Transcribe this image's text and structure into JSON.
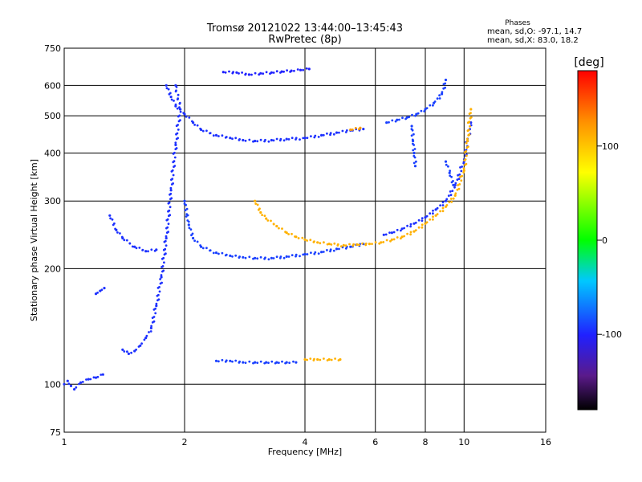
{
  "chart_data": {
    "type": "scatter",
    "title": "Tromsø 20121022 13:44:00–13:45:43",
    "subtitle": "RwPretec (8p)",
    "xlabel": "Frequency [MHz]",
    "ylabel": "Stationary phase Virtual Height [km]",
    "x_scale": "log",
    "y_scale": "log",
    "xlim": [
      1,
      16
    ],
    "ylim": [
      75,
      750
    ],
    "x_ticks": [
      1,
      2,
      4,
      6,
      8,
      10,
      16
    ],
    "y_ticks": [
      75,
      100,
      200,
      300,
      400,
      500,
      600,
      750
    ],
    "grid": true,
    "stats": {
      "heading": "Phases",
      "line_o": "mean, sd,O: -97.1, 14.7",
      "line_x": "mean, sd,X:  83.0, 18.2"
    },
    "colorbar": {
      "label": "[deg]",
      "range": [
        -180,
        180
      ],
      "ticks": [
        100,
        0,
        -100
      ]
    },
    "series": [
      {
        "phase": -95,
        "points": [
          [
            1.0,
            100
          ],
          [
            1.02,
            102
          ],
          [
            1.04,
            99
          ],
          [
            1.06,
            97
          ],
          [
            1.1,
            101
          ],
          [
            1.15,
            103
          ],
          [
            1.2,
            104
          ],
          [
            1.25,
            106
          ]
        ]
      },
      {
        "phase": -95,
        "points": [
          [
            1.2,
            172
          ],
          [
            1.23,
            175
          ],
          [
            1.26,
            178
          ]
        ]
      },
      {
        "phase": -95,
        "points": [
          [
            1.4,
            123
          ],
          [
            1.45,
            120
          ],
          [
            1.5,
            122
          ],
          [
            1.55,
            126
          ],
          [
            1.6,
            132
          ],
          [
            1.65,
            140
          ],
          [
            1.7,
            160
          ],
          [
            1.75,
            190
          ],
          [
            1.8,
            240
          ],
          [
            1.85,
            320
          ],
          [
            1.9,
            420
          ],
          [
            1.95,
            520
          ],
          [
            1.9,
            600
          ]
        ]
      },
      {
        "phase": -95,
        "points": [
          [
            1.3,
            275
          ],
          [
            1.35,
            252
          ],
          [
            1.4,
            240
          ],
          [
            1.5,
            228
          ],
          [
            1.6,
            222
          ],
          [
            1.7,
            224
          ]
        ]
      },
      {
        "phase": -95,
        "points": [
          [
            1.8,
            600
          ],
          [
            1.85,
            560
          ],
          [
            1.9,
            530
          ],
          [
            2.0,
            505
          ],
          [
            2.1,
            480
          ],
          [
            2.2,
            460
          ],
          [
            2.4,
            445
          ],
          [
            2.6,
            438
          ],
          [
            2.8,
            432
          ],
          [
            3.0,
            430
          ],
          [
            3.3,
            432
          ],
          [
            3.6,
            435
          ],
          [
            4.0,
            438
          ],
          [
            4.4,
            445
          ],
          [
            4.8,
            452
          ],
          [
            5.2,
            458
          ],
          [
            5.6,
            462
          ]
        ]
      },
      {
        "phase": -90,
        "points": [
          [
            2.0,
            300
          ],
          [
            2.05,
            260
          ],
          [
            2.1,
            240
          ],
          [
            2.2,
            228
          ],
          [
            2.4,
            220
          ],
          [
            2.6,
            216
          ],
          [
            2.8,
            214
          ],
          [
            3.0,
            213
          ],
          [
            3.3,
            213
          ],
          [
            3.6,
            215
          ],
          [
            4.0,
            218
          ],
          [
            4.4,
            221
          ],
          [
            4.8,
            225
          ],
          [
            5.2,
            228
          ],
          [
            5.6,
            232
          ]
        ]
      },
      {
        "phase": -100,
        "points": [
          [
            2.5,
            650
          ],
          [
            2.7,
            648
          ],
          [
            2.9,
            640
          ],
          [
            3.1,
            645
          ],
          [
            3.3,
            648
          ],
          [
            3.5,
            652
          ],
          [
            3.7,
            655
          ],
          [
            3.9,
            658
          ],
          [
            4.1,
            662
          ]
        ]
      },
      {
        "phase": -95,
        "points": [
          [
            6.3,
            245
          ],
          [
            6.6,
            248
          ],
          [
            7.0,
            254
          ],
          [
            7.5,
            262
          ],
          [
            8.0,
            272
          ],
          [
            8.5,
            285
          ],
          [
            9.0,
            300
          ],
          [
            9.5,
            330
          ],
          [
            10.0,
            380
          ],
          [
            10.2,
            430
          ],
          [
            10.4,
            480
          ]
        ]
      },
      {
        "phase": -90,
        "points": [
          [
            6.4,
            480
          ],
          [
            6.8,
            488
          ],
          [
            7.2,
            495
          ],
          [
            7.6,
            505
          ],
          [
            8.0,
            520
          ],
          [
            8.4,
            540
          ],
          [
            8.8,
            570
          ],
          [
            9.0,
            620
          ]
        ]
      },
      {
        "phase": -90,
        "points": [
          [
            7.4,
            470
          ],
          [
            7.45,
            430
          ],
          [
            7.5,
            400
          ],
          [
            7.55,
            370
          ]
        ]
      },
      {
        "phase": -90,
        "points": [
          [
            9.0,
            380
          ],
          [
            9.2,
            355
          ],
          [
            9.4,
            330
          ]
        ]
      },
      {
        "phase": -90,
        "points": [
          [
            2.4,
            115
          ],
          [
            2.6,
            115
          ],
          [
            2.8,
            114
          ],
          [
            3.0,
            114
          ],
          [
            3.2,
            114
          ],
          [
            3.4,
            114
          ],
          [
            3.6,
            114
          ],
          [
            3.8,
            114
          ]
        ]
      },
      {
        "phase": 110,
        "points": [
          [
            3.0,
            300
          ],
          [
            3.1,
            280
          ],
          [
            3.2,
            270
          ],
          [
            3.4,
            258
          ],
          [
            3.6,
            248
          ],
          [
            3.8,
            242
          ],
          [
            4.0,
            238
          ],
          [
            4.3,
            234
          ],
          [
            4.6,
            232
          ],
          [
            5.0,
            230
          ],
          [
            5.4,
            231
          ],
          [
            5.8,
            232
          ],
          [
            6.2,
            234
          ],
          [
            6.6,
            238
          ],
          [
            7.0,
            242
          ],
          [
            7.5,
            250
          ],
          [
            8.0,
            262
          ],
          [
            8.5,
            275
          ],
          [
            9.0,
            290
          ],
          [
            9.5,
            310
          ],
          [
            10.0,
            360
          ],
          [
            10.2,
            430
          ],
          [
            10.4,
            520
          ]
        ]
      },
      {
        "phase": 110,
        "points": [
          [
            4.0,
            116
          ],
          [
            4.3,
            116
          ],
          [
            4.6,
            116
          ],
          [
            4.9,
            116
          ]
        ]
      },
      {
        "phase": 120,
        "points": [
          [
            5.2,
            460
          ],
          [
            5.5,
            465
          ]
        ]
      }
    ]
  }
}
